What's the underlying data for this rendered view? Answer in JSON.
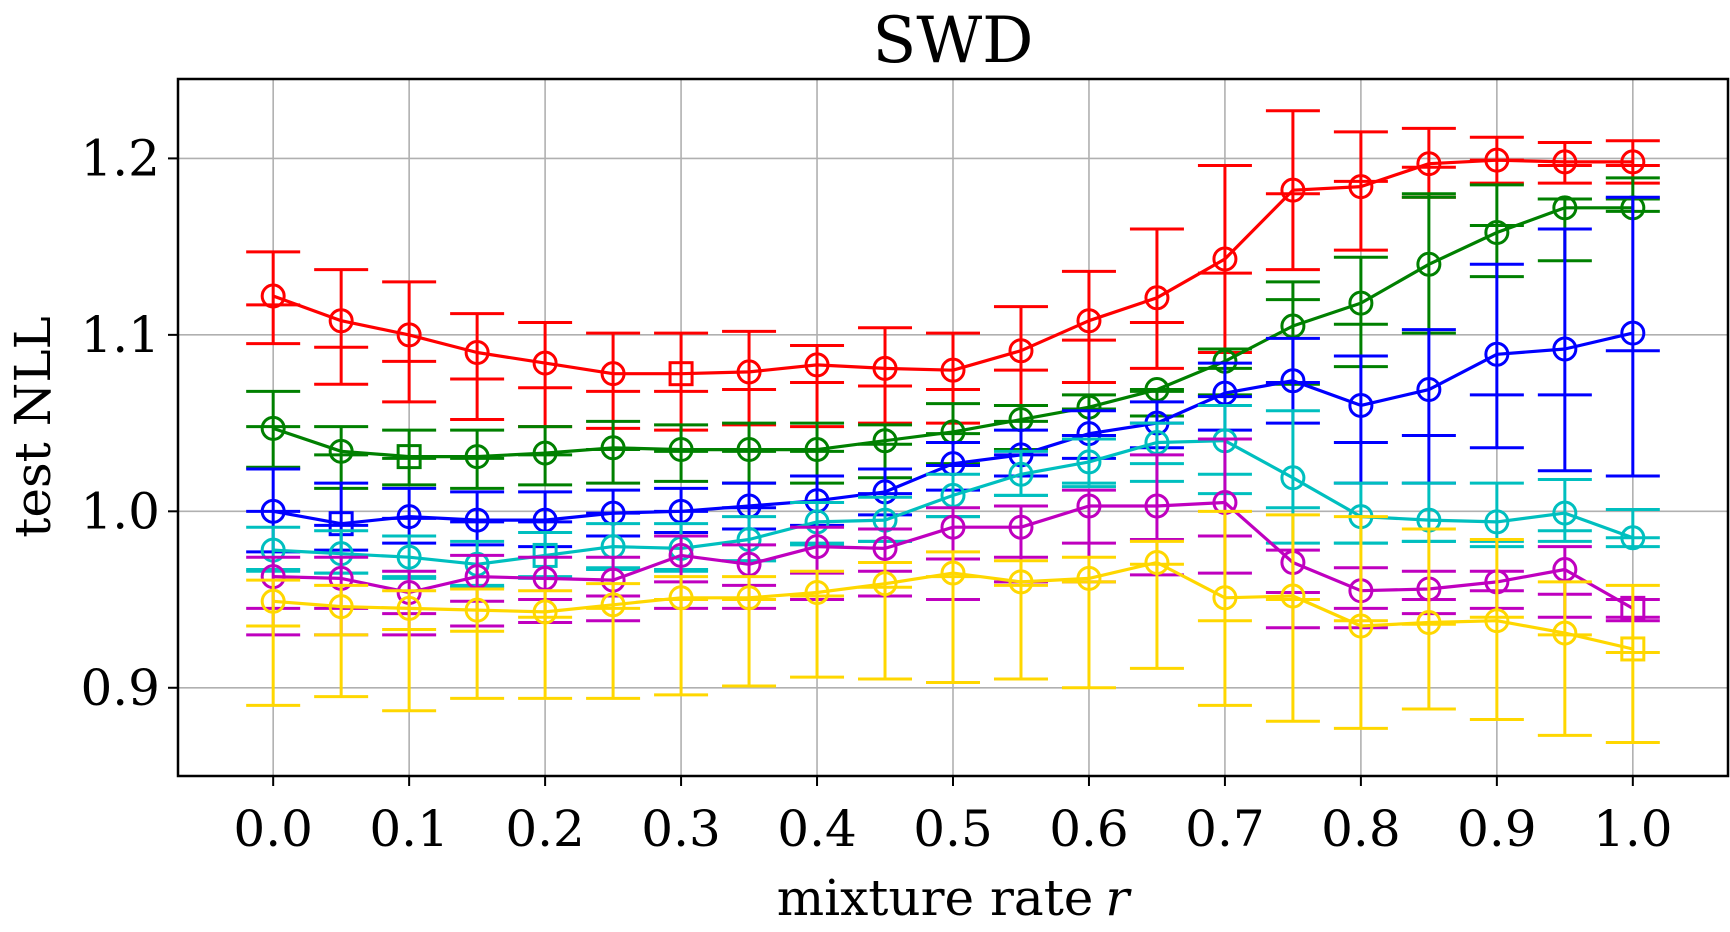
{
  "chart_data": {
    "type": "line",
    "title": "SWD",
    "xlabel": "mixture rate",
    "xlabel_var": "r",
    "ylabel": "test NLL",
    "xlim": [
      -0.07,
      1.07
    ],
    "ylim": [
      0.85,
      1.245
    ],
    "grid": true,
    "x": [
      0.0,
      0.05,
      0.1,
      0.15,
      0.2,
      0.25,
      0.3,
      0.35,
      0.4,
      0.45,
      0.5,
      0.55,
      0.6,
      0.65,
      0.7,
      0.75,
      0.8,
      0.85,
      0.9,
      0.95,
      1.0
    ],
    "x_ticks": [
      "0.0",
      "0.1",
      "0.2",
      "0.3",
      "0.4",
      "0.5",
      "0.6",
      "0.7",
      "0.8",
      "0.9",
      "1.0"
    ],
    "x_tick_values": [
      0.0,
      0.1,
      0.2,
      0.3,
      0.4,
      0.5,
      0.6,
      0.7,
      0.8,
      0.9,
      1.0
    ],
    "y_ticks": [
      "0.9",
      "1.0",
      "1.1",
      "1.2"
    ],
    "y_tick_values": [
      0.9,
      1.0,
      1.1,
      1.2
    ],
    "series": [
      {
        "name": "red",
        "color": "#ff0000",
        "marker_square_index": 6,
        "values": [
          1.122,
          1.108,
          1.1,
          1.09,
          1.084,
          1.078,
          1.078,
          1.079,
          1.083,
          1.081,
          1.08,
          1.091,
          1.108,
          1.121,
          1.143,
          1.182,
          1.184,
          1.197,
          1.199,
          1.198,
          1.198
        ],
        "err_low": [
          1.095,
          1.072,
          1.062,
          1.052,
          1.048,
          1.047,
          1.046,
          1.049,
          1.048,
          1.05,
          1.05,
          1.06,
          1.073,
          1.081,
          1.09,
          1.137,
          1.148,
          1.178,
          1.186,
          1.186,
          1.186
        ],
        "err_high": [
          1.147,
          1.137,
          1.13,
          1.112,
          1.107,
          1.101,
          1.101,
          1.102,
          1.094,
          1.104,
          1.101,
          1.116,
          1.136,
          1.16,
          1.196,
          1.227,
          1.215,
          1.217,
          1.212,
          1.209,
          1.21
        ],
        "cap_mid_low": [
          1.117,
          1.093,
          1.085,
          1.075,
          1.07,
          1.068,
          1.068,
          1.069,
          1.073,
          1.071,
          1.069,
          1.08,
          1.097,
          1.107,
          1.135,
          1.18,
          1.187,
          1.195,
          1.199,
          1.196,
          1.196
        ],
        "cap_mid_high": [
          1.117,
          1.093,
          1.085,
          1.075,
          1.07,
          1.068,
          1.068,
          1.069,
          1.073,
          1.071,
          1.069,
          1.08,
          1.097,
          1.107,
          1.135,
          1.18,
          1.187,
          1.195,
          1.199,
          1.196,
          1.196
        ]
      },
      {
        "name": "green",
        "color": "#008000",
        "marker_square_index": 2,
        "values": [
          1.047,
          1.034,
          1.031,
          1.031,
          1.033,
          1.036,
          1.035,
          1.035,
          1.035,
          1.04,
          1.045,
          1.052,
          1.059,
          1.069,
          1.085,
          1.105,
          1.118,
          1.14,
          1.158,
          1.172,
          1.172
        ],
        "err_low": [
          1.025,
          1.013,
          1.015,
          1.013,
          1.015,
          1.016,
          1.017,
          1.016,
          1.016,
          1.019,
          1.027,
          1.035,
          1.043,
          1.054,
          1.066,
          1.072,
          1.082,
          1.101,
          1.133,
          1.142,
          1.17
        ],
        "err_high": [
          1.068,
          1.048,
          1.046,
          1.046,
          1.048,
          1.051,
          1.049,
          1.05,
          1.05,
          1.049,
          1.061,
          1.06,
          1.066,
          1.068,
          1.092,
          1.13,
          1.144,
          1.18,
          1.185,
          1.177,
          1.189
        ],
        "cap_mid_low": [
          1.048,
          1.032,
          1.03,
          1.03,
          1.032,
          1.035,
          1.034,
          1.034,
          1.034,
          1.038,
          1.044,
          1.051,
          1.058,
          1.069,
          1.081,
          1.12,
          1.106,
          1.178,
          1.162,
          1.177,
          1.177
        ],
        "cap_mid_high": [
          1.048,
          1.032,
          1.03,
          1.03,
          1.032,
          1.035,
          1.034,
          1.034,
          1.034,
          1.038,
          1.044,
          1.051,
          1.058,
          1.069,
          1.081,
          1.12,
          1.106,
          1.178,
          1.162,
          1.177,
          1.177
        ]
      },
      {
        "name": "blue",
        "color": "#0000ff",
        "marker_square_index": 1,
        "values": [
          1.0,
          0.993,
          0.997,
          0.995,
          0.995,
          0.999,
          1.0,
          1.003,
          1.006,
          1.011,
          1.027,
          1.032,
          1.044,
          1.05,
          1.067,
          1.074,
          1.06,
          1.069,
          1.089,
          1.092,
          1.101
        ],
        "err_low": [
          0.977,
          0.978,
          0.982,
          0.981,
          0.98,
          0.986,
          0.988,
          0.99,
          0.992,
          0.998,
          1.012,
          1.02,
          1.03,
          1.036,
          1.046,
          1.05,
          1.016,
          1.016,
          1.036,
          1.023,
          1.02
        ],
        "err_high": [
          1.024,
          1.016,
          1.013,
          1.011,
          1.011,
          1.012,
          1.013,
          1.016,
          1.02,
          1.024,
          1.039,
          1.046,
          1.057,
          1.062,
          1.084,
          1.098,
          1.088,
          1.103,
          1.14,
          1.16,
          1.178
        ],
        "cap_mid_low": [
          1.0,
          0.992,
          0.996,
          0.994,
          0.994,
          0.999,
          1.0,
          1.002,
          1.005,
          1.01,
          1.026,
          1.032,
          1.043,
          1.05,
          1.065,
          1.073,
          1.039,
          1.043,
          1.066,
          1.066,
          1.091
        ],
        "cap_mid_high": [
          1.0,
          0.992,
          0.996,
          0.994,
          0.994,
          0.999,
          1.0,
          1.002,
          1.005,
          1.01,
          1.026,
          1.032,
          1.043,
          1.05,
          1.065,
          1.073,
          1.039,
          1.043,
          1.066,
          1.066,
          1.091
        ]
      },
      {
        "name": "cyan",
        "color": "#00bfbf",
        "marker_square_index": 4,
        "values": [
          0.978,
          0.976,
          0.974,
          0.97,
          0.975,
          0.98,
          0.979,
          0.984,
          0.994,
          0.995,
          1.009,
          1.021,
          1.028,
          1.039,
          1.04,
          1.019,
          0.997,
          0.995,
          0.994,
          0.999,
          0.985
        ],
        "err_low": [
          0.966,
          0.965,
          0.963,
          0.957,
          0.962,
          0.967,
          0.966,
          0.972,
          0.981,
          0.983,
          0.997,
          1.009,
          1.014,
          1.017,
          1.01,
          0.982,
          0.982,
          0.983,
          0.98,
          0.983,
          0.98
        ],
        "err_high": [
          0.991,
          0.989,
          0.986,
          0.983,
          0.988,
          0.993,
          0.993,
          0.997,
          1.005,
          1.008,
          1.021,
          1.034,
          1.041,
          1.05,
          1.06,
          1.057,
          1.016,
          1.016,
          1.016,
          1.018,
          1.001
        ],
        "cap_mid_low": [
          0.967,
          0.965,
          0.962,
          0.958,
          0.963,
          0.968,
          0.967,
          0.972,
          0.982,
          0.983,
          0.997,
          1.009,
          1.016,
          1.027,
          1.021,
          1.002,
          0.982,
          0.983,
          0.983,
          0.989,
          0.985
        ],
        "cap_mid_high": [
          0.967,
          0.965,
          0.962,
          0.958,
          0.963,
          0.968,
          0.967,
          0.972,
          0.982,
          0.983,
          0.997,
          1.009,
          1.016,
          1.027,
          1.021,
          1.002,
          0.982,
          0.983,
          0.983,
          0.989,
          0.985
        ]
      },
      {
        "name": "magenta",
        "color": "#bf00bf",
        "marker_square_index": 20,
        "values": [
          0.963,
          0.962,
          0.954,
          0.963,
          0.962,
          0.961,
          0.975,
          0.97,
          0.98,
          0.979,
          0.991,
          0.991,
          1.003,
          1.003,
          1.005,
          0.971,
          0.955,
          0.956,
          0.96,
          0.967,
          0.945
        ],
        "err_low": [
          0.93,
          0.93,
          0.93,
          0.935,
          0.937,
          0.938,
          0.945,
          0.945,
          0.95,
          0.952,
          0.95,
          0.96,
          0.96,
          0.964,
          0.965,
          0.934,
          0.934,
          0.942,
          0.945,
          0.94,
          0.938
        ],
        "err_high": [
          0.974,
          0.974,
          0.966,
          0.975,
          0.974,
          0.974,
          0.986,
          0.981,
          0.991,
          0.99,
          1.002,
          1.003,
          1.012,
          1.032,
          1.041,
          0.978,
          0.968,
          0.966,
          0.966,
          0.98,
          0.95
        ],
        "cap_mid_low": [
          0.945,
          0.945,
          0.942,
          0.949,
          0.95,
          0.952,
          0.96,
          0.958,
          0.965,
          0.966,
          0.973,
          0.974,
          0.982,
          0.984,
          0.986,
          0.954,
          0.945,
          0.95,
          0.955,
          0.953,
          0.94
        ],
        "cap_mid_high": [
          0.945,
          0.945,
          0.942,
          0.949,
          0.95,
          0.952,
          0.96,
          0.958,
          0.965,
          0.966,
          0.973,
          0.974,
          0.982,
          0.984,
          0.986,
          0.954,
          0.945,
          0.95,
          0.955,
          0.953,
          0.94
        ]
      },
      {
        "name": "gold",
        "color": "#ffd700",
        "marker_square_index": 20,
        "values": [
          0.949,
          0.946,
          0.945,
          0.944,
          0.943,
          0.947,
          0.951,
          0.951,
          0.954,
          0.959,
          0.965,
          0.96,
          0.962,
          0.971,
          0.951,
          0.952,
          0.935,
          0.937,
          0.938,
          0.931,
          0.922
        ],
        "err_low": [
          0.89,
          0.895,
          0.887,
          0.894,
          0.894,
          0.894,
          0.896,
          0.901,
          0.906,
          0.905,
          0.903,
          0.905,
          0.9,
          0.911,
          0.89,
          0.881,
          0.877,
          0.888,
          0.882,
          0.873,
          0.869
        ],
        "err_high": [
          0.961,
          0.958,
          0.955,
          0.956,
          0.955,
          0.959,
          0.963,
          0.963,
          0.966,
          0.971,
          0.977,
          0.972,
          0.974,
          0.983,
          1.0,
          0.998,
          0.997,
          0.99,
          0.984,
          0.96,
          0.958
        ],
        "cap_mid_low": [
          0.935,
          0.93,
          0.933,
          0.932,
          0.94,
          0.945,
          0.95,
          0.95,
          0.952,
          0.957,
          0.963,
          0.958,
          0.96,
          0.97,
          0.938,
          0.95,
          0.938,
          0.936,
          0.94,
          0.93,
          0.92
        ],
        "cap_mid_high": [
          0.935,
          0.93,
          0.933,
          0.932,
          0.94,
          0.945,
          0.95,
          0.95,
          0.952,
          0.957,
          0.963,
          0.958,
          0.96,
          0.97,
          0.938,
          0.95,
          0.938,
          0.936,
          0.94,
          0.93,
          0.92
        ]
      }
    ]
  }
}
